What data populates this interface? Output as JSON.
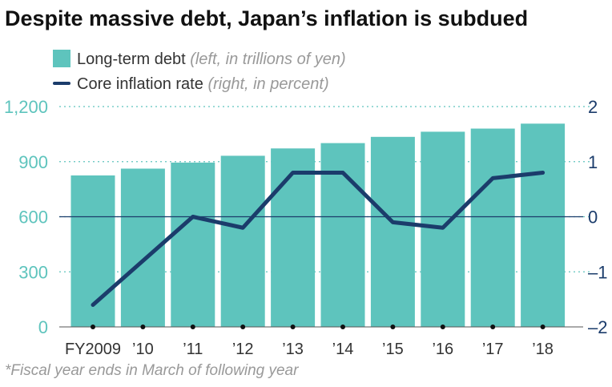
{
  "title": "Despite massive debt, Japan’s inflation is subdued",
  "legend": {
    "bar_label": "Long-term debt",
    "bar_note": "(left, in trillions of yen)",
    "line_label": "Core inflation rate",
    "line_note": "(right, in percent)"
  },
  "footnote": "*Fiscal year ends in March of following year",
  "chart_data": {
    "type": "bar+line",
    "categories": [
      "FY2009",
      "’10",
      "’11",
      "’12",
      "’13",
      "’14",
      "’15",
      "’16",
      "’17",
      "’18"
    ],
    "series": [
      {
        "name": "Long-term debt",
        "type": "bar",
        "axis": "left",
        "values": [
          825,
          862,
          895,
          932,
          972,
          1001,
          1035,
          1063,
          1080,
          1107
        ]
      },
      {
        "name": "Core inflation rate",
        "type": "line",
        "axis": "right",
        "values": [
          -1.6,
          -0.8,
          0.0,
          -0.2,
          0.8,
          0.8,
          -0.1,
          -0.2,
          0.7,
          0.8
        ]
      }
    ],
    "left_axis": {
      "min": 0,
      "max": 1200,
      "ticks": [
        "0",
        "300",
        "600",
        "900",
        "1,200"
      ]
    },
    "right_axis": {
      "min": -2,
      "max": 2,
      "ticks": [
        "–2",
        "–1",
        "0",
        "1",
        "2"
      ]
    },
    "colors": {
      "bar": "#5ec4bd",
      "line": "#1b3c6b",
      "left_axis_text": "#5ec4bd",
      "right_axis_text": "#1b3c6b",
      "grid": "#5ec4bd"
    },
    "grid": true
  }
}
